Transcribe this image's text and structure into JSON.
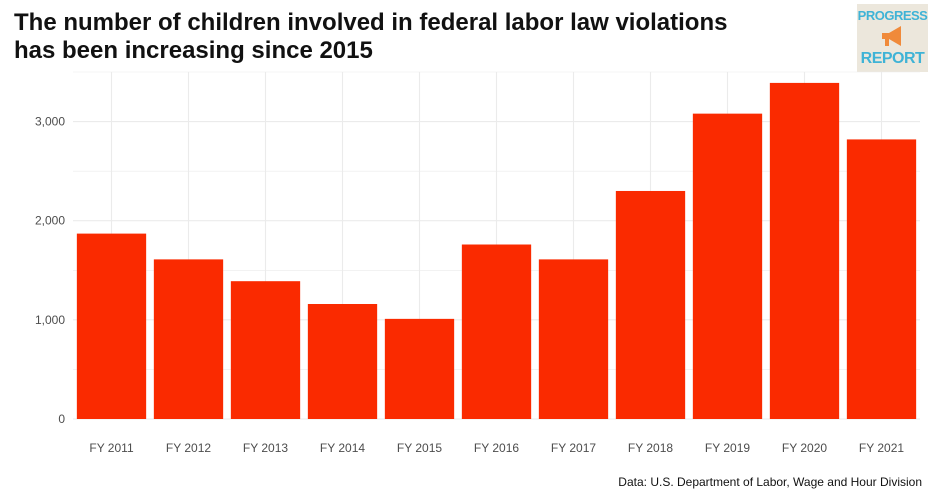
{
  "title_line1": "The number of children involved in federal labor law violations",
  "title_line2": "has been increasing since 2015",
  "logo": {
    "top_text": "PROGRESS",
    "bottom_text": "REPORT",
    "icon": "megaphone-icon"
  },
  "source": "Data: U.S. Department of Labor, Wage and Hour Division",
  "colors": {
    "bar": "#fa2a00",
    "grid": "#ebebeb",
    "tick_text": "#4d4d4d",
    "logo_text": "#3fb3d6",
    "logo_icon": "#f08a3a"
  },
  "chart_data": {
    "type": "bar",
    "title": "The number of children involved in federal labor law violations has been increasing since 2015",
    "xlabel": "",
    "ylabel": "",
    "categories": [
      "FY 2011",
      "FY 2012",
      "FY 2013",
      "FY 2014",
      "FY 2015",
      "FY 2016",
      "FY 2017",
      "FY 2018",
      "FY 2019",
      "FY 2020",
      "FY 2021"
    ],
    "values": [
      1870,
      1610,
      1390,
      1160,
      1010,
      1760,
      1610,
      2300,
      3080,
      3390,
      2820
    ],
    "ylim": [
      0,
      3500
    ],
    "yticks": [
      0,
      1000,
      2000,
      3000
    ],
    "ytick_labels": [
      "0",
      "1,000",
      "2,000",
      "3,000"
    ],
    "grid": true,
    "legend": "none"
  }
}
